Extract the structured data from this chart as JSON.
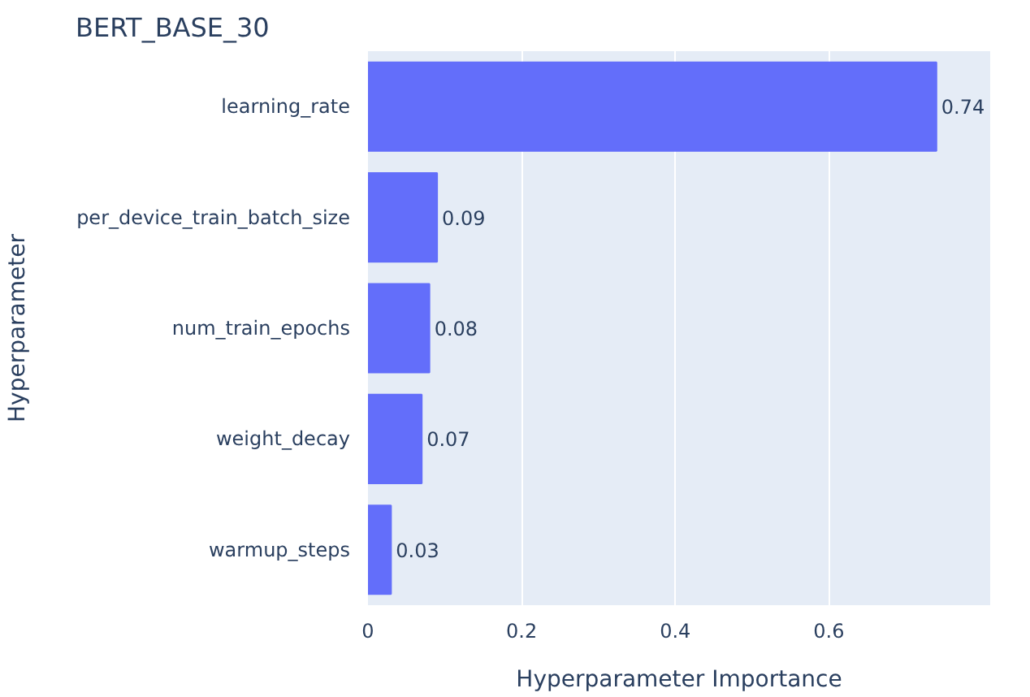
{
  "chart_data": {
    "type": "bar",
    "orientation": "horizontal",
    "title": "BERT_BASE_30",
    "xlabel": "Hyperparameter Importance",
    "ylabel": "Hyperparameter",
    "categories": [
      "learning_rate",
      "per_device_train_batch_size",
      "num_train_epochs",
      "weight_decay",
      "warmup_steps"
    ],
    "values": [
      0.74,
      0.09,
      0.08,
      0.07,
      0.03
    ],
    "color": "#636efa",
    "xlim": [
      0,
      0.81
    ],
    "xticks": [
      0,
      0.2,
      0.4,
      0.6
    ],
    "grid": "x",
    "data_labels": true
  }
}
